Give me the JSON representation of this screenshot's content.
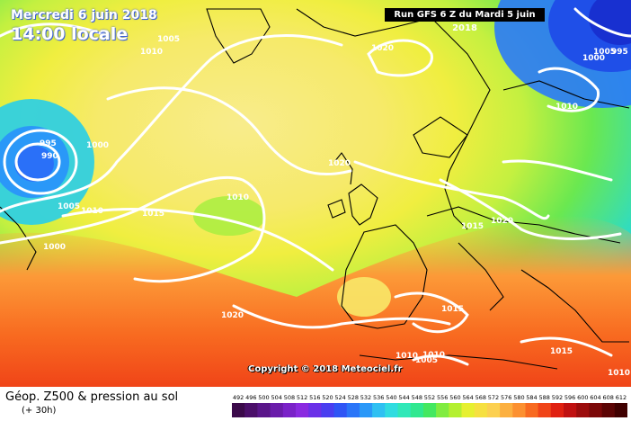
{
  "header": {
    "date": "Mercredi 6 juin 2018",
    "time": "14:00 locale",
    "run": "Run GFS 6 Z du Mardi 5 juin 2018"
  },
  "footer": {
    "title": "Géop. Z500 & pression au sol",
    "subtitle": "(+ 30h)",
    "copyright": "Copyright © 2018 Meteociel.fr"
  },
  "legend": {
    "values": [
      "492",
      "496",
      "500",
      "504",
      "508",
      "512",
      "516",
      "520",
      "524",
      "528",
      "532",
      "536",
      "540",
      "544",
      "548",
      "552",
      "556",
      "560",
      "564",
      "568",
      "572",
      "576",
      "580",
      "584",
      "588",
      "592",
      "596",
      "600",
      "604",
      "608",
      "612"
    ],
    "colors": [
      "#3b0a4a",
      "#4b0f6a",
      "#5a168a",
      "#6a1caa",
      "#7a22c8",
      "#8a2ae0",
      "#6a30e8",
      "#4a3ef0",
      "#2f55f5",
      "#2a75f8",
      "#2a98f8",
      "#2fc0f2",
      "#30dce0",
      "#30e8b8",
      "#30e890",
      "#44e860",
      "#80ec40",
      "#b4f030",
      "#e6f030",
      "#f6e040",
      "#fcd050",
      "#fcb040",
      "#fc9030",
      "#f86a20",
      "#f04418",
      "#e02010",
      "#c01010",
      "#9c0c0c",
      "#7c0808",
      "#5c0404",
      "#400000"
    ]
  },
  "pressure_labels": [
    "1005",
    "1010",
    "1020",
    "1000",
    "995",
    "995",
    "990",
    "1000",
    "1005",
    "1010",
    "1015",
    "1010",
    "1000",
    "1020",
    "1010",
    "1015",
    "1020",
    "1020",
    "1015",
    "1010",
    "1005",
    "1015",
    "1010",
    "1005",
    "1010"
  ],
  "colors": {
    "land_outline": "#000000",
    "isobar": "#ffffff",
    "header_text": "#ffffff"
  }
}
